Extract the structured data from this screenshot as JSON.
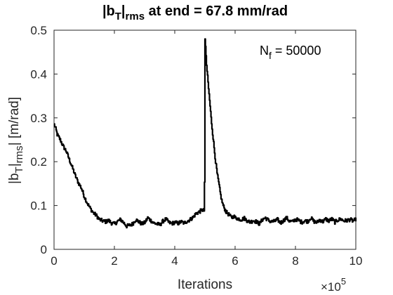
{
  "chart_data": {
    "type": "line",
    "title": {
      "prefix": "|b",
      "sub1": "T",
      "mid": "|",
      "sub2": "rms",
      "suffix": " at end = 67.8 mm/rad"
    },
    "xlabel": "Iterations",
    "x_multiplier": {
      "base": "×10",
      "exponent": "5"
    },
    "ylabel": {
      "prefix": "|b",
      "sub1": "T",
      "mid": "|",
      "sub2": "rms",
      "suffix": "| [m/rad]"
    },
    "annotation": {
      "prefix": "N",
      "sub": "f",
      "suffix": " = 50000"
    },
    "xlim": [
      0,
      10
    ],
    "ylim": [
      0,
      0.5
    ],
    "xticks": [
      0,
      2,
      4,
      6,
      8,
      10
    ],
    "xtick_labels": [
      "0",
      "2",
      "4",
      "6",
      "8",
      "10"
    ],
    "yticks": [
      0,
      0.1,
      0.2,
      0.3,
      0.4,
      0.5
    ],
    "ytick_labels": [
      "0",
      "0.1",
      "0.2",
      "0.3",
      "0.4",
      "0.5"
    ],
    "line_color": "#000000",
    "series": [
      {
        "x": [
          0,
          0.05,
          0.1,
          0.2,
          0.3,
          0.4,
          0.5,
          0.6,
          0.7,
          0.8,
          0.9,
          1.0,
          1.1,
          1.2,
          1.3,
          1.4,
          1.5,
          1.6,
          1.7,
          1.8,
          1.9,
          2.0,
          2.1,
          2.2,
          2.3,
          2.4,
          2.5,
          2.6,
          2.7,
          2.8,
          2.9,
          3.0,
          3.1,
          3.2,
          3.3,
          3.4,
          3.5,
          3.6,
          3.7,
          3.8,
          3.9,
          4.0,
          4.1,
          4.2,
          4.3,
          4.4,
          4.5,
          4.6,
          4.7,
          4.8,
          4.9,
          4.98,
          5.0,
          5.02,
          5.05,
          5.1,
          5.15,
          5.2,
          5.25,
          5.3,
          5.35,
          5.4,
          5.45,
          5.5,
          5.55,
          5.6,
          5.65,
          5.7,
          5.75,
          5.8,
          5.85,
          5.9,
          5.95,
          6.0,
          6.1,
          6.2,
          6.3,
          6.4,
          6.5,
          6.6,
          6.7,
          6.8,
          6.9,
          7.0,
          7.1,
          7.2,
          7.3,
          7.4,
          7.5,
          7.6,
          7.7,
          7.8,
          7.9,
          8.0,
          8.1,
          8.2,
          8.3,
          8.4,
          8.5,
          8.6,
          8.7,
          8.8,
          8.9,
          9.0,
          9.1,
          9.2,
          9.3,
          9.4,
          9.5,
          9.6,
          9.7,
          9.8,
          9.9,
          10.0
        ],
        "y": [
          0.285,
          0.275,
          0.262,
          0.25,
          0.235,
          0.224,
          0.205,
          0.187,
          0.168,
          0.152,
          0.14,
          0.12,
          0.105,
          0.093,
          0.083,
          0.077,
          0.068,
          0.065,
          0.063,
          0.066,
          0.06,
          0.058,
          0.064,
          0.068,
          0.061,
          0.053,
          0.055,
          0.058,
          0.068,
          0.063,
          0.058,
          0.061,
          0.072,
          0.066,
          0.06,
          0.058,
          0.056,
          0.064,
          0.069,
          0.061,
          0.059,
          0.062,
          0.059,
          0.063,
          0.06,
          0.064,
          0.068,
          0.073,
          0.082,
          0.085,
          0.09,
          0.088,
          0.48,
          0.46,
          0.42,
          0.38,
          0.34,
          0.3,
          0.265,
          0.232,
          0.2,
          0.173,
          0.152,
          0.13,
          0.112,
          0.1,
          0.092,
          0.085,
          0.082,
          0.078,
          0.074,
          0.073,
          0.076,
          0.072,
          0.07,
          0.068,
          0.071,
          0.065,
          0.062,
          0.066,
          0.063,
          0.058,
          0.068,
          0.072,
          0.066,
          0.063,
          0.064,
          0.068,
          0.06,
          0.066,
          0.072,
          0.064,
          0.063,
          0.069,
          0.066,
          0.062,
          0.065,
          0.064,
          0.072,
          0.064,
          0.061,
          0.068,
          0.063,
          0.069,
          0.065,
          0.069,
          0.062,
          0.067,
          0.069,
          0.065,
          0.066,
          0.068,
          0.065,
          0.068
        ]
      }
    ]
  }
}
